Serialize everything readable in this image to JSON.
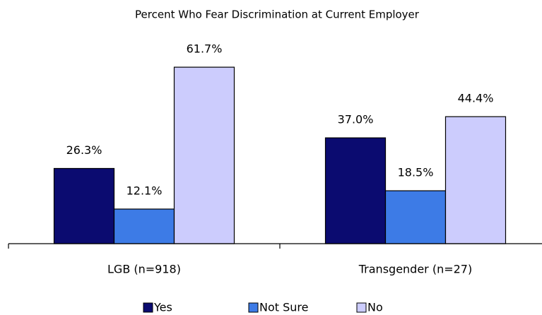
{
  "chart_data": {
    "type": "bar",
    "title": "Percent Who Fear Discrimination at Current Employer",
    "categories": [
      "LGB (n=918)",
      "Transgender (n=27)"
    ],
    "series": [
      {
        "name": "Yes",
        "color": "#0b0b70",
        "values": [
          26.3,
          37.0
        ],
        "value_labels": [
          "26.3%",
          "37.0%"
        ]
      },
      {
        "name": "Not Sure",
        "color": "#3d7be6",
        "values": [
          12.1,
          18.5
        ],
        "value_labels": [
          "12.1%",
          "18.5%"
        ]
      },
      {
        "name": "No",
        "color": "#ccccfd",
        "values": [
          61.7,
          44.4
        ],
        "value_labels": [
          "61.7%",
          "44.4%"
        ]
      }
    ],
    "ylim": [
      0,
      70
    ]
  }
}
